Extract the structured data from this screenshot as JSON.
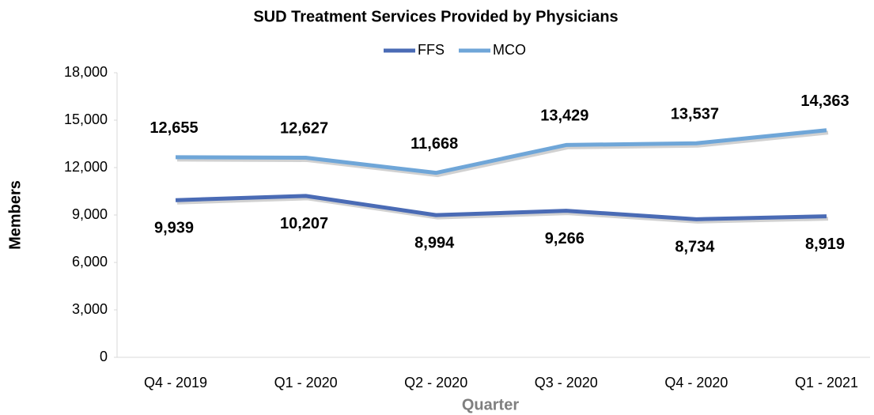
{
  "chart_data": {
    "type": "line",
    "title": "SUD Treatment Services Provided by Physicians",
    "x_label": "Quarter",
    "y_label": "Members",
    "categories": [
      "Q4 - 2019",
      "Q1 - 2020",
      "Q2 - 2020",
      "Q3 - 2020",
      "Q4 - 2020",
      "Q1 - 2021"
    ],
    "series": [
      {
        "name": "FFS",
        "color": "#4a6bb5",
        "values": [
          9939,
          10207,
          8994,
          9266,
          8734,
          8919
        ],
        "value_labels": [
          "9,939",
          "10,207",
          "8,994",
          "9,266",
          "8,734",
          "8,919"
        ]
      },
      {
        "name": "MCO",
        "color": "#6fa6d8",
        "values": [
          12655,
          12627,
          11668,
          13429,
          13537,
          14363
        ],
        "value_labels": [
          "12,655",
          "12,627",
          "11,668",
          "13,429",
          "13,537",
          "14,363"
        ]
      }
    ],
    "ylim": [
      0,
      18000
    ],
    "yticks": [
      0,
      {
        "value": 3000,
        "label": "3,000"
      },
      {
        "value": 6000,
        "label": "6,000"
      },
      {
        "value": 9000,
        "label": "9,000"
      },
      {
        "value": 12000,
        "label": "12,000"
      },
      {
        "value": 15000,
        "label": "15,000"
      },
      {
        "value": 18000,
        "label": "18,000"
      }
    ],
    "legend": "top",
    "grid": false
  }
}
